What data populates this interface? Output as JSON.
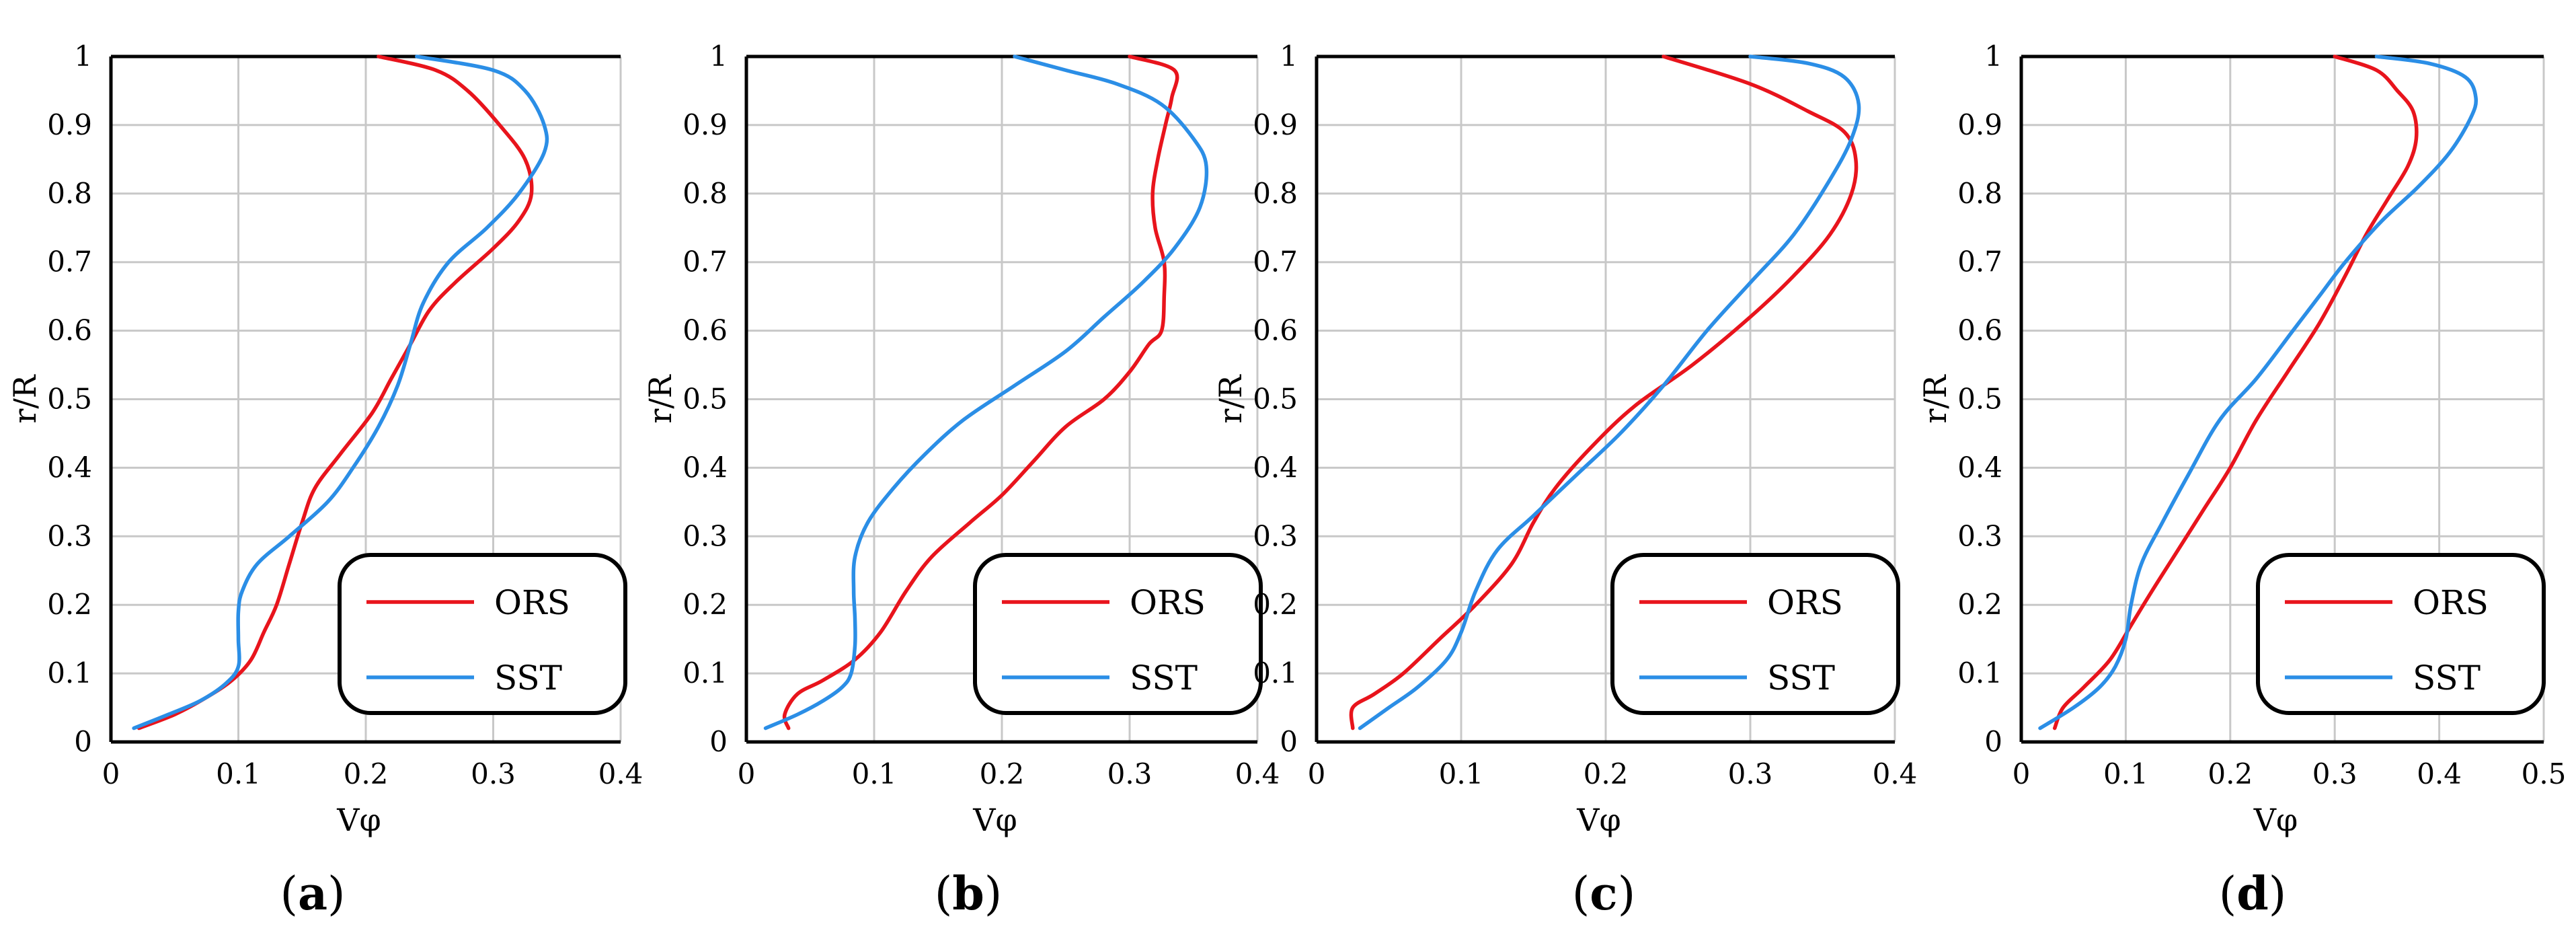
{
  "chart_data": [
    {
      "type": "line",
      "panel": "a",
      "xlabel": "Vφ",
      "ylabel": "r/R",
      "xlim": [
        0,
        0.4
      ],
      "ylim": [
        0,
        1
      ],
      "xticks": [
        "0",
        "0.1",
        "0.2",
        "0.3",
        "0.4"
      ],
      "yticks": [
        "0",
        "0.1",
        "0.2",
        "0.3",
        "0.4",
        "0.5",
        "0.6",
        "0.7",
        "0.8",
        "0.9",
        "1"
      ],
      "legend": "bottom-right",
      "series": [
        {
          "name": "ORS",
          "color": "#e8141c",
          "points": [
            [
              0.022,
              0.02
            ],
            [
              0.05,
              0.04
            ],
            [
              0.075,
              0.065
            ],
            [
              0.095,
              0.09
            ],
            [
              0.11,
              0.12
            ],
            [
              0.12,
              0.16
            ],
            [
              0.13,
              0.2
            ],
            [
              0.14,
              0.26
            ],
            [
              0.15,
              0.32
            ],
            [
              0.16,
              0.37
            ],
            [
              0.18,
              0.42
            ],
            [
              0.205,
              0.48
            ],
            [
              0.22,
              0.53
            ],
            [
              0.235,
              0.58
            ],
            [
              0.25,
              0.63
            ],
            [
              0.27,
              0.67
            ],
            [
              0.3,
              0.72
            ],
            [
              0.32,
              0.76
            ],
            [
              0.33,
              0.8
            ],
            [
              0.325,
              0.85
            ],
            [
              0.305,
              0.9
            ],
            [
              0.28,
              0.95
            ],
            [
              0.255,
              0.98
            ],
            [
              0.21,
              1.0
            ]
          ]
        },
        {
          "name": "SST",
          "color": "#2b8ee6",
          "points": [
            [
              0.018,
              0.02
            ],
            [
              0.045,
              0.04
            ],
            [
              0.07,
              0.06
            ],
            [
              0.09,
              0.085
            ],
            [
              0.1,
              0.11
            ],
            [
              0.1,
              0.15
            ],
            [
              0.1,
              0.19
            ],
            [
              0.103,
              0.22
            ],
            [
              0.115,
              0.26
            ],
            [
              0.14,
              0.3
            ],
            [
              0.17,
              0.35
            ],
            [
              0.19,
              0.4
            ],
            [
              0.21,
              0.46
            ],
            [
              0.225,
              0.52
            ],
            [
              0.235,
              0.58
            ],
            [
              0.245,
              0.64
            ],
            [
              0.265,
              0.7
            ],
            [
              0.295,
              0.75
            ],
            [
              0.32,
              0.8
            ],
            [
              0.34,
              0.86
            ],
            [
              0.34,
              0.9
            ],
            [
              0.325,
              0.95
            ],
            [
              0.3,
              0.98
            ],
            [
              0.24,
              1.0
            ]
          ]
        }
      ]
    },
    {
      "type": "line",
      "panel": "b",
      "xlabel": "Vφ",
      "ylabel": "r/R",
      "xlim": [
        0,
        0.4
      ],
      "ylim": [
        0,
        1
      ],
      "xticks": [
        "0",
        "0.1",
        "0.2",
        "0.3",
        "0.4"
      ],
      "yticks": [
        "0",
        "0.1",
        "0.2",
        "0.3",
        "0.4",
        "0.5",
        "0.6",
        "0.7",
        "0.8",
        "0.9",
        "1"
      ],
      "legend": "bottom-right",
      "series": [
        {
          "name": "ORS",
          "color": "#e8141c",
          "points": [
            [
              0.033,
              0.02
            ],
            [
              0.03,
              0.04
            ],
            [
              0.04,
              0.07
            ],
            [
              0.06,
              0.09
            ],
            [
              0.085,
              0.12
            ],
            [
              0.105,
              0.16
            ],
            [
              0.125,
              0.22
            ],
            [
              0.145,
              0.27
            ],
            [
              0.175,
              0.32
            ],
            [
              0.2,
              0.36
            ],
            [
              0.225,
              0.41
            ],
            [
              0.25,
              0.46
            ],
            [
              0.28,
              0.5
            ],
            [
              0.3,
              0.54
            ],
            [
              0.315,
              0.58
            ],
            [
              0.325,
              0.6
            ],
            [
              0.327,
              0.65
            ],
            [
              0.327,
              0.7
            ],
            [
              0.32,
              0.75
            ],
            [
              0.318,
              0.8
            ],
            [
              0.322,
              0.85
            ],
            [
              0.328,
              0.9
            ],
            [
              0.333,
              0.94
            ],
            [
              0.335,
              0.98
            ],
            [
              0.3,
              1.0
            ]
          ]
        },
        {
          "name": "SST",
          "color": "#2b8ee6",
          "points": [
            [
              0.015,
              0.02
            ],
            [
              0.04,
              0.04
            ],
            [
              0.06,
              0.06
            ],
            [
              0.075,
              0.08
            ],
            [
              0.082,
              0.1
            ],
            [
              0.085,
              0.14
            ],
            [
              0.085,
              0.18
            ],
            [
              0.084,
              0.22
            ],
            [
              0.085,
              0.27
            ],
            [
              0.095,
              0.32
            ],
            [
              0.115,
              0.37
            ],
            [
              0.14,
              0.42
            ],
            [
              0.17,
              0.47
            ],
            [
              0.21,
              0.52
            ],
            [
              0.25,
              0.57
            ],
            [
              0.28,
              0.62
            ],
            [
              0.31,
              0.67
            ],
            [
              0.335,
              0.72
            ],
            [
              0.355,
              0.78
            ],
            [
              0.36,
              0.84
            ],
            [
              0.35,
              0.88
            ],
            [
              0.325,
              0.93
            ],
            [
              0.29,
              0.96
            ],
            [
              0.25,
              0.98
            ],
            [
              0.21,
              1.0
            ]
          ]
        }
      ]
    },
    {
      "type": "line",
      "panel": "c",
      "xlabel": "Vφ",
      "ylabel": "r/R",
      "xlim": [
        0,
        0.4
      ],
      "ylim": [
        0,
        1
      ],
      "xticks": [
        "0",
        "0.1",
        "0.2",
        "0.3",
        "0.4"
      ],
      "yticks": [
        "0",
        "0.1",
        "0.2",
        "0.3",
        "0.4",
        "0.5",
        "0.6",
        "0.7",
        "0.8",
        "0.9",
        "1"
      ],
      "legend": "bottom-right",
      "series": [
        {
          "name": "ORS",
          "color": "#e8141c",
          "points": [
            [
              0.025,
              0.02
            ],
            [
              0.025,
              0.05
            ],
            [
              0.04,
              0.07
            ],
            [
              0.06,
              0.1
            ],
            [
              0.085,
              0.15
            ],
            [
              0.11,
              0.2
            ],
            [
              0.135,
              0.26
            ],
            [
              0.15,
              0.32
            ],
            [
              0.165,
              0.37
            ],
            [
              0.19,
              0.43
            ],
            [
              0.22,
              0.49
            ],
            [
              0.26,
              0.55
            ],
            [
              0.3,
              0.62
            ],
            [
              0.33,
              0.68
            ],
            [
              0.355,
              0.74
            ],
            [
              0.37,
              0.8
            ],
            [
              0.373,
              0.85
            ],
            [
              0.365,
              0.89
            ],
            [
              0.34,
              0.92
            ],
            [
              0.3,
              0.96
            ],
            [
              0.24,
              1.0
            ]
          ]
        },
        {
          "name": "SST",
          "color": "#2b8ee6",
          "points": [
            [
              0.03,
              0.02
            ],
            [
              0.05,
              0.05
            ],
            [
              0.07,
              0.08
            ],
            [
              0.09,
              0.12
            ],
            [
              0.1,
              0.16
            ],
            [
              0.11,
              0.22
            ],
            [
              0.125,
              0.28
            ],
            [
              0.15,
              0.33
            ],
            [
              0.18,
              0.39
            ],
            [
              0.21,
              0.45
            ],
            [
              0.24,
              0.52
            ],
            [
              0.27,
              0.6
            ],
            [
              0.3,
              0.67
            ],
            [
              0.33,
              0.74
            ],
            [
              0.355,
              0.82
            ],
            [
              0.37,
              0.88
            ],
            [
              0.375,
              0.93
            ],
            [
              0.365,
              0.97
            ],
            [
              0.34,
              0.99
            ],
            [
              0.3,
              1.0
            ]
          ]
        }
      ]
    },
    {
      "type": "line",
      "panel": "d",
      "xlabel": "Vφ",
      "ylabel": "r/R",
      "xlim": [
        0,
        0.5
      ],
      "ylim": [
        0,
        1
      ],
      "xticks": [
        "0",
        "0.1",
        "0.2",
        "0.3",
        "0.4",
        "0.5"
      ],
      "yticks": [
        "0",
        "0.1",
        "0.2",
        "0.3",
        "0.4",
        "0.5",
        "0.6",
        "0.7",
        "0.8",
        "0.9",
        "1"
      ],
      "legend": "bottom-right",
      "series": [
        {
          "name": "ORS",
          "color": "#e8141c",
          "points": [
            [
              0.032,
              0.02
            ],
            [
              0.04,
              0.05
            ],
            [
              0.06,
              0.08
            ],
            [
              0.085,
              0.12
            ],
            [
              0.105,
              0.17
            ],
            [
              0.125,
              0.22
            ],
            [
              0.15,
              0.28
            ],
            [
              0.175,
              0.34
            ],
            [
              0.2,
              0.4
            ],
            [
              0.225,
              0.47
            ],
            [
              0.255,
              0.54
            ],
            [
              0.285,
              0.61
            ],
            [
              0.31,
              0.68
            ],
            [
              0.33,
              0.74
            ],
            [
              0.35,
              0.79
            ],
            [
              0.37,
              0.84
            ],
            [
              0.378,
              0.88
            ],
            [
              0.375,
              0.92
            ],
            [
              0.36,
              0.95
            ],
            [
              0.34,
              0.98
            ],
            [
              0.3,
              1.0
            ]
          ]
        },
        {
          "name": "SST",
          "color": "#2b8ee6",
          "points": [
            [
              0.018,
              0.02
            ],
            [
              0.05,
              0.05
            ],
            [
              0.075,
              0.08
            ],
            [
              0.09,
              0.11
            ],
            [
              0.1,
              0.15
            ],
            [
              0.105,
              0.2
            ],
            [
              0.115,
              0.26
            ],
            [
              0.135,
              0.32
            ],
            [
              0.16,
              0.39
            ],
            [
              0.19,
              0.47
            ],
            [
              0.225,
              0.53
            ],
            [
              0.26,
              0.6
            ],
            [
              0.285,
              0.65
            ],
            [
              0.31,
              0.7
            ],
            [
              0.345,
              0.76
            ],
            [
              0.38,
              0.81
            ],
            [
              0.41,
              0.86
            ],
            [
              0.43,
              0.91
            ],
            [
              0.435,
              0.94
            ],
            [
              0.425,
              0.97
            ],
            [
              0.39,
              0.99
            ],
            [
              0.34,
              1.0
            ]
          ]
        }
      ]
    }
  ]
}
